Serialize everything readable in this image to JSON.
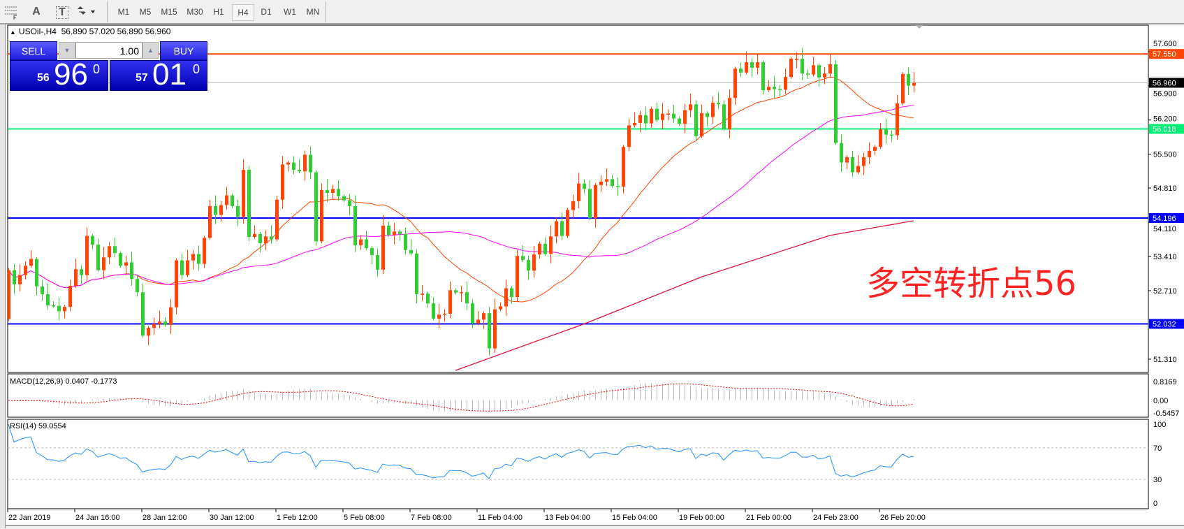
{
  "toolbar": {
    "icons": [
      "period-separator-grid-icon",
      "text-label-icon",
      "text-box-icon",
      "arrows-dropdown-icon"
    ],
    "text_icon_label": "A",
    "textbox_icon_label": "T",
    "timeframes": [
      "M1",
      "M5",
      "M15",
      "M30",
      "H1",
      "H4",
      "D1",
      "W1",
      "MN"
    ],
    "active_timeframe": "H4"
  },
  "chart_header": {
    "symbol": "USOil-,H4",
    "ohlc": "56.890 57.020 56.890 56.960"
  },
  "trade_panel": {
    "sell_label": "SELL",
    "buy_label": "BUY",
    "volume": "1.00",
    "sell_price": {
      "small": "56",
      "big": "96",
      "sup": "0"
    },
    "buy_price": {
      "small": "57",
      "big": "01",
      "sup": "0"
    }
  },
  "annotation": "多空转折点56",
  "price_axis": [
    "57.600",
    "56.900",
    "56.200",
    "55.500",
    "54.810",
    "54.110",
    "53.410",
    "52.710",
    "51.310"
  ],
  "price_levels": [
    {
      "value": "57.550",
      "color": "#ff4500",
      "kind": "horizontal-line"
    },
    {
      "value": "56.960",
      "color": "#000000",
      "kind": "bid-line"
    },
    {
      "value": "56.018",
      "color": "#00ee76",
      "kind": "horizontal-line"
    },
    {
      "value": "54.196",
      "color": "#0000ff",
      "kind": "horizontal-line"
    },
    {
      "value": "52.032",
      "color": "#0000ff",
      "kind": "horizontal-line"
    }
  ],
  "macd": {
    "label": "MACD(12,26,9) 0.0407 -0.1773",
    "axis": [
      "0.8169",
      "0.00",
      "-0.5457"
    ]
  },
  "rsi": {
    "label": "RSI(14) 59.0554",
    "axis": [
      "100",
      "70",
      "30",
      "0"
    ],
    "levels": [
      70,
      30
    ]
  },
  "time_axis": [
    "22 Jan 2019",
    "24 Jan 16:00",
    "28 Jan 12:00",
    "30 Jan 12:00",
    "1 Feb 12:00",
    "5 Feb 08:00",
    "7 Feb 08:00",
    "11 Feb 04:00",
    "13 Feb 04:00",
    "15 Feb 04:00",
    "19 Feb 00:00",
    "21 Feb 00:00",
    "24 Feb 23:00",
    "26 Feb 20:00"
  ],
  "chart_data": {
    "type": "candlestick",
    "symbol": "USOil-",
    "timeframe": "H4",
    "up_color": "#ff4500",
    "down_color": "#32cd32",
    "first_open": 52.13,
    "closes": [
      53.13,
      52.84,
      53.03,
      53.22,
      53.36,
      52.8,
      52.64,
      52.41,
      52.4,
      52.29,
      52.38,
      52.81,
      53.15,
      53.03,
      53.83,
      53.65,
      53.13,
      53.39,
      53.62,
      53.48,
      53.22,
      53.29,
      52.95,
      52.68,
      51.79,
      51.95,
      52.03,
      52.08,
      52.01,
      52.37,
      53.33,
      53.03,
      53.33,
      53.46,
      53.26,
      53.79,
      54.44,
      54.26,
      54.46,
      54.66,
      54.44,
      54.22,
      55.18,
      53.81,
      53.87,
      53.68,
      53.82,
      53.76,
      54.57,
      55.29,
      55.33,
      55.18,
      55.15,
      55.49,
      55.13,
      53.72,
      54.77,
      54.71,
      54.79,
      54.64,
      54.56,
      54.44,
      53.64,
      53.76,
      53.58,
      53.44,
      53.14,
      54.04,
      53.85,
      53.92,
      53.87,
      53.54,
      53.47,
      52.64,
      52.65,
      52.45,
      52.14,
      52.22,
      52.24,
      52.72,
      52.67,
      52.68,
      52.45,
      52.04,
      52.12,
      52.25,
      51.53,
      52.33,
      52.39,
      52.76,
      52.58,
      53.42,
      53.34,
      53.12,
      53.45,
      53.67,
      53.46,
      53.82,
      54.13,
      53.83,
      54.36,
      54.54,
      54.9,
      54.79,
      54.19,
      54.87,
      54.94,
      54.99,
      54.85,
      54.84,
      55.65,
      56.09,
      56.14,
      56.3,
      56.13,
      56.43,
      56.2,
      56.33,
      56.33,
      56.23,
      56.12,
      56.4,
      56.52,
      55.87,
      56.34,
      56.26,
      56.55,
      56.52,
      56.01,
      56.65,
      57.25,
      57.17,
      57.38,
      57.27,
      57.38,
      56.81,
      56.88,
      56.83,
      56.82,
      57.08,
      57.45,
      57.45,
      57.15,
      57.13,
      57.32,
      57.07,
      57.15,
      57.34,
      55.73,
      55.33,
      55.44,
      55.13,
      55.26,
      55.44,
      55.57,
      55.65,
      56.01,
      55.9,
      55.89,
      56.54,
      57.14,
      56.9,
      56.96
    ],
    "ma_slow_points": [
      [
        80,
        51.08
      ],
      [
        103,
        52.03
      ],
      [
        124,
        52.99
      ],
      [
        147,
        53.84
      ],
      [
        162,
        54.14
      ]
    ],
    "fast_ma_color": "#ff4500",
    "mid_ma_color": "#ff00ff",
    "slow_ma_color": "#dc143c",
    "ylim": [
      51.0,
      57.95
    ]
  }
}
